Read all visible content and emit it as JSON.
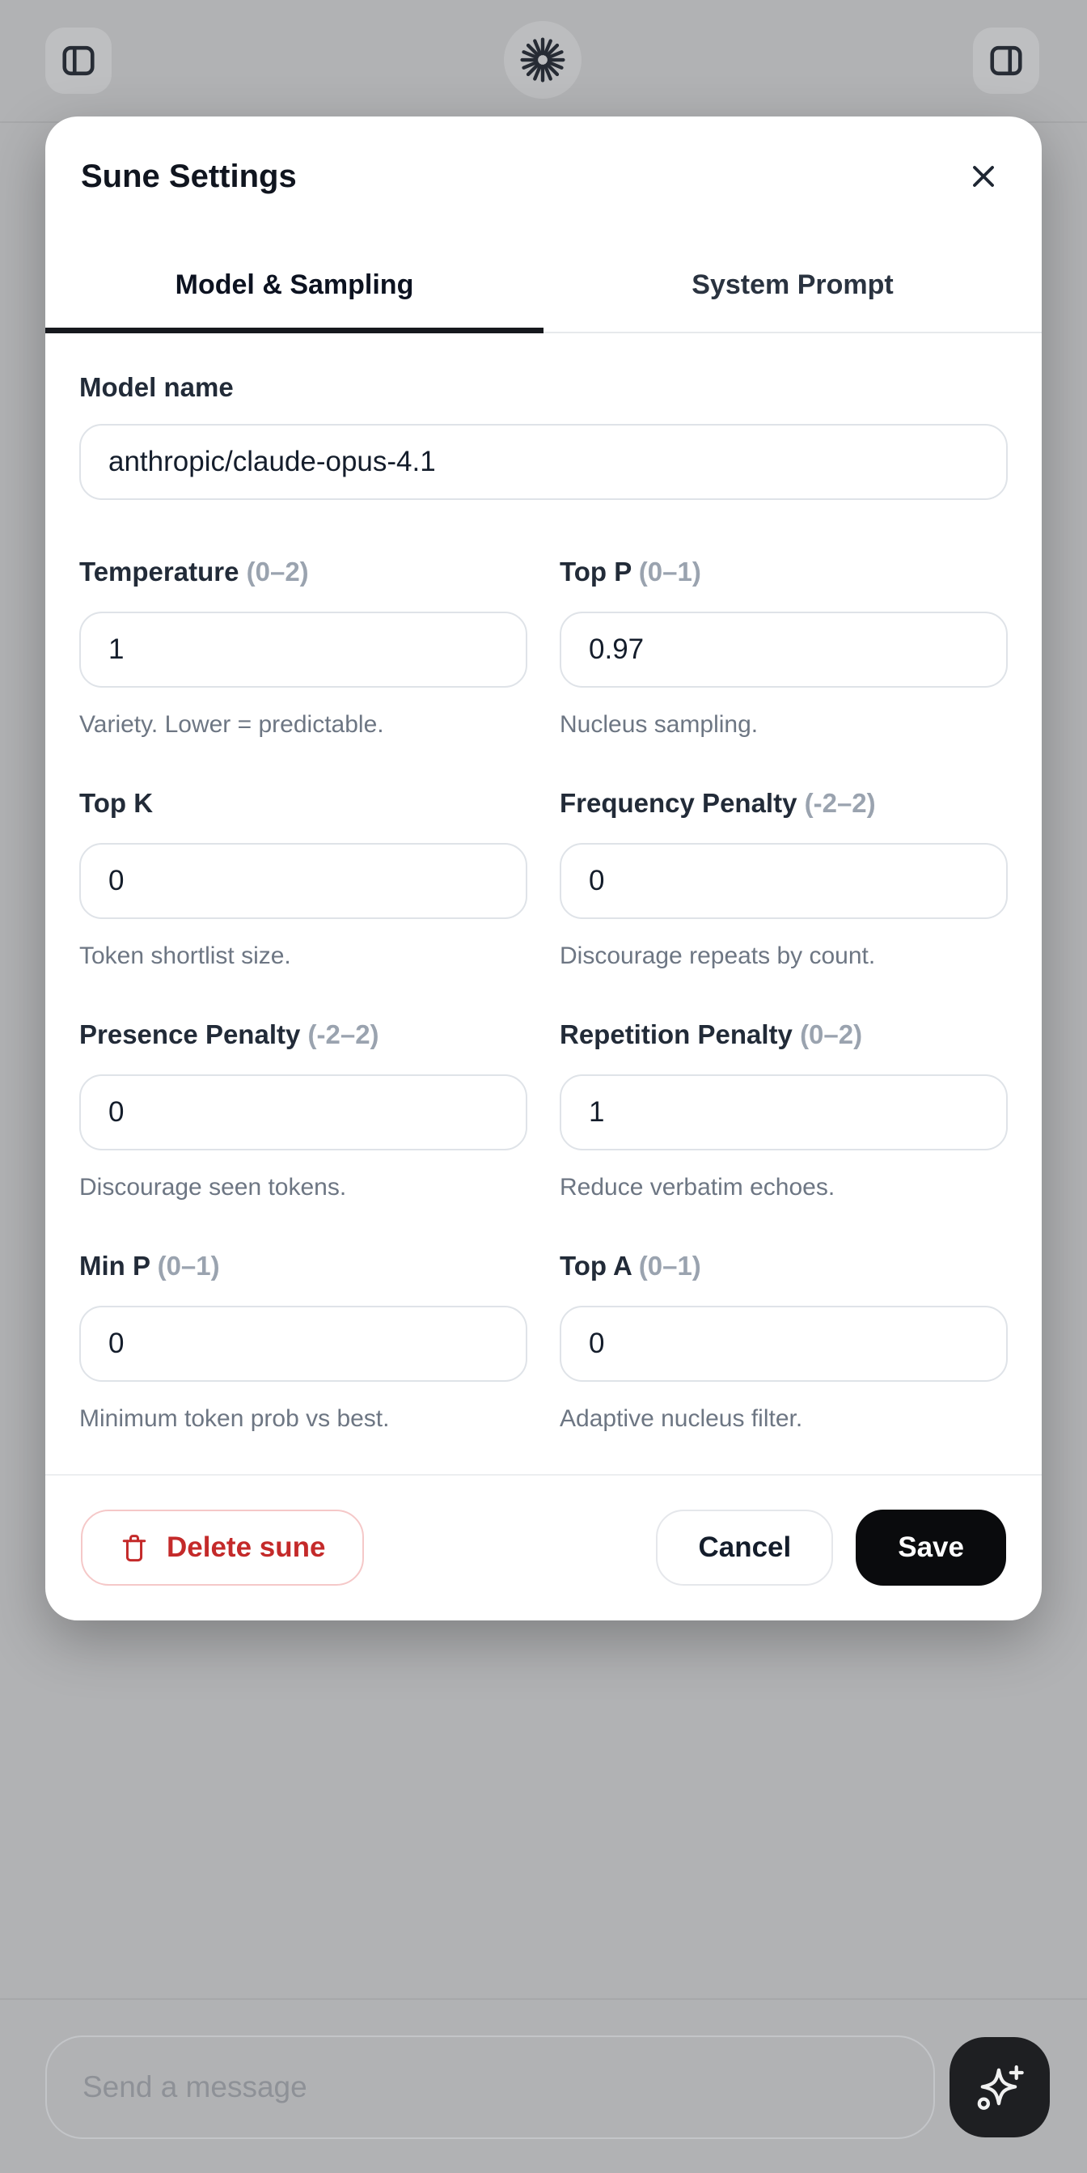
{
  "header": {
    "left_button": "toggle left sidebar",
    "center_button": "sune avatar",
    "right_button": "toggle right sidebar"
  },
  "modal": {
    "title": "Sune Settings",
    "tabs": [
      {
        "label": "Model & Sampling",
        "active": true
      },
      {
        "label": "System Prompt",
        "active": false
      }
    ],
    "model_name": {
      "label": "Model name",
      "value": "anthropic/claude-opus-4.1"
    },
    "fields": [
      {
        "label": "Temperature",
        "range": "(0–2)",
        "value": "1",
        "hint": "Variety. Lower = predictable."
      },
      {
        "label": "Top P",
        "range": "(0–1)",
        "value": "0.97",
        "hint": "Nucleus sampling."
      },
      {
        "label": "Top K",
        "range": "",
        "value": "0",
        "hint": "Token shortlist size."
      },
      {
        "label": "Frequency Penalty",
        "range": "(-2–2)",
        "value": "0",
        "hint": "Discourage repeats by count."
      },
      {
        "label": "Presence Penalty",
        "range": "(-2–2)",
        "value": "0",
        "hint": "Discourage seen tokens."
      },
      {
        "label": "Repetition Penalty",
        "range": "(0–2)",
        "value": "1",
        "hint": "Reduce verbatim echoes."
      },
      {
        "label": "Min P",
        "range": "(0–1)",
        "value": "0",
        "hint": "Minimum token prob vs best."
      },
      {
        "label": "Top A",
        "range": "(0–1)",
        "value": "0",
        "hint": "Adaptive nucleus filter."
      }
    ],
    "footer": {
      "delete_label": "Delete sune",
      "cancel_label": "Cancel",
      "save_label": "Save"
    }
  },
  "composer": {
    "placeholder": "Send a message"
  },
  "colors": {
    "danger_text": "#c42a2a",
    "danger_border": "#f5c8c8",
    "save_bg": "#0a0b0d",
    "active_tab_underline": "#16181d",
    "modal_bg": "#ffffff",
    "backdrop": "#b1b2b4",
    "input_border": "#dfe3e8",
    "hint_text": "#6d7683",
    "range_text": "#9aa3af"
  }
}
